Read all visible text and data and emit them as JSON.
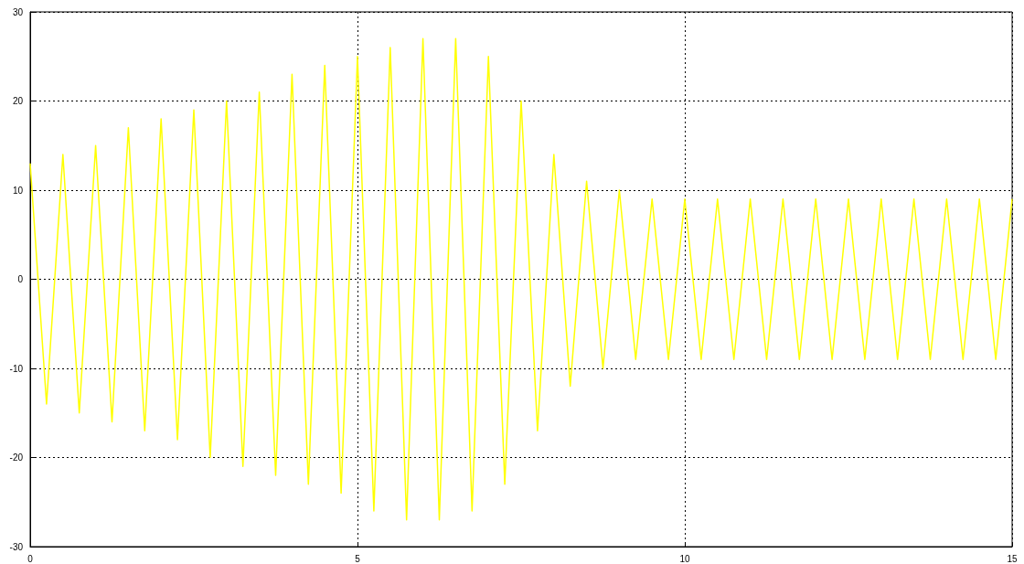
{
  "chart_data": {
    "type": "line",
    "x": [
      0,
      0.25,
      0.5,
      0.75,
      1,
      1.25,
      1.5,
      1.75,
      2,
      2.25,
      2.5,
      2.75,
      3,
      3.25,
      3.5,
      3.75,
      4,
      4.25,
      4.5,
      4.75,
      5,
      5.25,
      5.5,
      5.75,
      6,
      6.25,
      6.5,
      6.75,
      7,
      7.25,
      7.5,
      7.75,
      8,
      8.25,
      8.5,
      8.75,
      9,
      9.25,
      9.5,
      9.75,
      10,
      10.25,
      10.5,
      10.75,
      11,
      11.25,
      11.5,
      11.75,
      12,
      12.25,
      12.5,
      12.75,
      13,
      13.25,
      13.5,
      13.75,
      14,
      14.25,
      14.5,
      14.75,
      15
    ],
    "series": [
      {
        "color": "#ffff00",
        "values": [
          13,
          -14,
          14,
          -15,
          15,
          -16,
          17,
          -17,
          18,
          -18,
          19,
          -20,
          20,
          -21,
          21,
          -22,
          23,
          -23,
          24,
          -24,
          25,
          -26,
          26,
          -27,
          27,
          -27,
          27,
          -26,
          25,
          -23,
          20,
          -17,
          14,
          -12,
          11,
          -10,
          10,
          -9,
          9,
          -9,
          9,
          -9,
          9,
          -9,
          9,
          -9,
          9,
          -9,
          9,
          -9,
          9,
          -9,
          9,
          -9,
          9,
          -9,
          9,
          -9,
          9,
          -9,
          9
        ]
      }
    ],
    "xlim": [
      0,
      15
    ],
    "xticks": [
      0,
      5,
      10,
      15
    ],
    "ylim": [
      -30,
      30
    ],
    "yticks": [
      -30,
      -20,
      -10,
      0,
      10,
      20,
      30
    ],
    "grid": true,
    "marker": "none",
    "line_style": "solid"
  }
}
